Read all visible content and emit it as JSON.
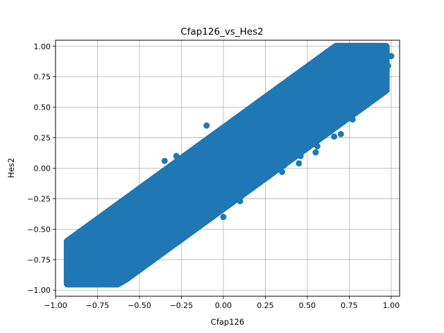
{
  "chart_data": {
    "type": "scatter",
    "title": "Cfap126_vs_Hes2",
    "xlabel": "Cfap126",
    "ylabel": "Hes2",
    "xlim": [
      -1.0,
      1.05
    ],
    "ylim": [
      -1.05,
      1.05
    ],
    "xticks": [
      -1.0,
      -0.75,
      -0.5,
      -0.25,
      0.0,
      0.25,
      0.5,
      0.75,
      1.0
    ],
    "xtick_labels": [
      "−1.00",
      "−0.75",
      "−0.50",
      "−0.25",
      "0.00",
      "0.25",
      "0.50",
      "0.75",
      "1.00"
    ],
    "yticks": [
      -1.0,
      -0.75,
      -0.5,
      -0.25,
      0.0,
      0.25,
      0.5,
      0.75,
      1.0
    ],
    "ytick_labels": [
      "−1.00",
      "−0.75",
      "−0.50",
      "−0.25",
      "0.00",
      "0.25",
      "0.50",
      "0.75",
      "1.00"
    ],
    "grid": true,
    "marker_color": "#1f77b4",
    "points": [
      [
        -0.92,
        -0.92
      ],
      [
        -0.93,
        -0.84
      ],
      [
        -0.9,
        -0.77
      ],
      [
        -0.86,
        -0.9
      ],
      [
        -0.86,
        -0.74
      ],
      [
        -0.82,
        -0.88
      ],
      [
        -0.8,
        -0.79
      ],
      [
        -0.8,
        -0.67
      ],
      [
        -0.84,
        -0.57
      ],
      [
        -0.77,
        -0.88
      ],
      [
        -0.75,
        -0.79
      ],
      [
        -0.75,
        -0.63
      ],
      [
        -0.73,
        -0.52
      ],
      [
        -0.7,
        -0.84
      ],
      [
        -0.7,
        -0.72
      ],
      [
        -0.68,
        -0.59
      ],
      [
        -0.67,
        -0.46
      ],
      [
        -0.65,
        -0.86
      ],
      [
        -0.65,
        -0.75
      ],
      [
        -0.63,
        -0.63
      ],
      [
        -0.62,
        -0.5
      ],
      [
        -0.6,
        -0.39
      ],
      [
        -0.58,
        -0.8
      ],
      [
        -0.58,
        -0.68
      ],
      [
        -0.56,
        -0.55
      ],
      [
        -0.55,
        -0.42
      ],
      [
        -0.52,
        -0.33
      ],
      [
        -0.5,
        -0.7
      ],
      [
        -0.5,
        -0.59
      ],
      [
        -0.48,
        -0.46
      ],
      [
        -0.46,
        -0.35
      ],
      [
        -0.45,
        -0.24
      ],
      [
        -0.42,
        -0.64
      ],
      [
        -0.42,
        -0.52
      ],
      [
        -0.4,
        -0.4
      ],
      [
        -0.38,
        -0.28
      ],
      [
        -0.35,
        -0.2
      ],
      [
        -0.34,
        -0.57
      ],
      [
        -0.33,
        -0.45
      ],
      [
        -0.31,
        -0.33
      ],
      [
        -0.3,
        -0.21
      ],
      [
        -0.32,
        0.0
      ],
      [
        -0.28,
        -0.11
      ],
      [
        -0.25,
        -0.5
      ],
      [
        -0.26,
        -0.38
      ],
      [
        -0.24,
        -0.26
      ],
      [
        -0.22,
        -0.14
      ],
      [
        -0.22,
        -0.03
      ],
      [
        -0.2,
        0.06
      ],
      [
        -0.18,
        -0.42
      ],
      [
        -0.17,
        -0.3
      ],
      [
        -0.16,
        -0.18
      ],
      [
        -0.15,
        -0.07
      ],
      [
        -0.13,
        0.05
      ],
      [
        -0.12,
        0.15
      ],
      [
        -0.1,
        -0.35
      ],
      [
        -0.09,
        -0.23
      ],
      [
        -0.08,
        -0.11
      ],
      [
        -0.06,
        0.01
      ],
      [
        -0.05,
        0.12
      ],
      [
        -0.04,
        0.23
      ],
      [
        -0.02,
        0.31
      ],
      [
        0.0,
        -0.28
      ],
      [
        0.01,
        -0.16
      ],
      [
        0.02,
        -0.04
      ],
      [
        0.03,
        0.08
      ],
      [
        0.04,
        0.2
      ],
      [
        0.05,
        0.31
      ],
      [
        0.07,
        0.4
      ],
      [
        0.08,
        -0.2
      ],
      [
        0.1,
        -0.08
      ],
      [
        0.11,
        0.04
      ],
      [
        0.12,
        0.16
      ],
      [
        0.13,
        0.28
      ],
      [
        0.15,
        0.38
      ],
      [
        0.16,
        0.48
      ],
      [
        0.17,
        -0.13
      ],
      [
        0.19,
        -0.01
      ],
      [
        0.2,
        0.11
      ],
      [
        0.21,
        0.23
      ],
      [
        0.22,
        0.35
      ],
      [
        0.23,
        0.45
      ],
      [
        0.25,
        0.53
      ],
      [
        0.26,
        -0.05
      ],
      [
        0.28,
        0.07
      ],
      [
        0.29,
        0.19
      ],
      [
        0.3,
        0.31
      ],
      [
        0.31,
        0.42
      ],
      [
        0.33,
        0.52
      ],
      [
        0.35,
        0.6
      ],
      [
        0.36,
        0.02
      ],
      [
        0.37,
        0.13
      ],
      [
        0.38,
        0.26
      ],
      [
        0.4,
        0.37
      ],
      [
        0.41,
        0.48
      ],
      [
        0.43,
        0.58
      ],
      [
        0.45,
        0.66
      ],
      [
        0.46,
        0.1
      ],
      [
        0.47,
        0.21
      ],
      [
        0.48,
        0.32
      ],
      [
        0.5,
        0.44
      ],
      [
        0.51,
        0.55
      ],
      [
        0.53,
        0.64
      ],
      [
        0.55,
        0.72
      ],
      [
        0.56,
        0.18
      ],
      [
        0.57,
        0.29
      ],
      [
        0.58,
        0.4
      ],
      [
        0.6,
        0.51
      ],
      [
        0.61,
        0.62
      ],
      [
        0.63,
        0.71
      ],
      [
        0.65,
        0.78
      ],
      [
        0.66,
        0.26
      ],
      [
        0.67,
        0.37
      ],
      [
        0.69,
        0.48
      ],
      [
        0.7,
        0.59
      ],
      [
        0.72,
        0.69
      ],
      [
        0.74,
        0.79
      ],
      [
        0.76,
        0.86
      ],
      [
        0.77,
        0.4
      ],
      [
        0.78,
        0.51
      ],
      [
        0.8,
        0.63
      ],
      [
        0.82,
        0.74
      ],
      [
        0.84,
        0.84
      ],
      [
        0.86,
        0.91
      ],
      [
        0.88,
        0.55
      ],
      [
        0.89,
        0.67
      ],
      [
        0.91,
        0.78
      ],
      [
        0.92,
        0.88
      ],
      [
        0.94,
        0.95
      ],
      [
        0.96,
        0.73
      ],
      [
        0.98,
        0.84
      ],
      [
        1.0,
        0.92
      ],
      [
        0.93,
        1.0
      ],
      [
        0.25,
        0.57
      ],
      [
        0.3,
        0.62
      ],
      [
        -0.35,
        0.06
      ],
      [
        -0.28,
        0.1
      ],
      [
        -0.1,
        0.35
      ],
      [
        -0.85,
        -0.57
      ],
      [
        -0.75,
        -0.5
      ],
      [
        0.1,
        -0.27
      ],
      [
        0.35,
        -0.03
      ],
      [
        0.45,
        0.04
      ],
      [
        0.55,
        0.13
      ],
      [
        0.7,
        0.28
      ],
      [
        -0.55,
        -0.8
      ],
      [
        -0.45,
        -0.72
      ],
      [
        -0.3,
        -0.62
      ],
      [
        -0.2,
        -0.5
      ],
      [
        0.0,
        -0.4
      ]
    ]
  }
}
